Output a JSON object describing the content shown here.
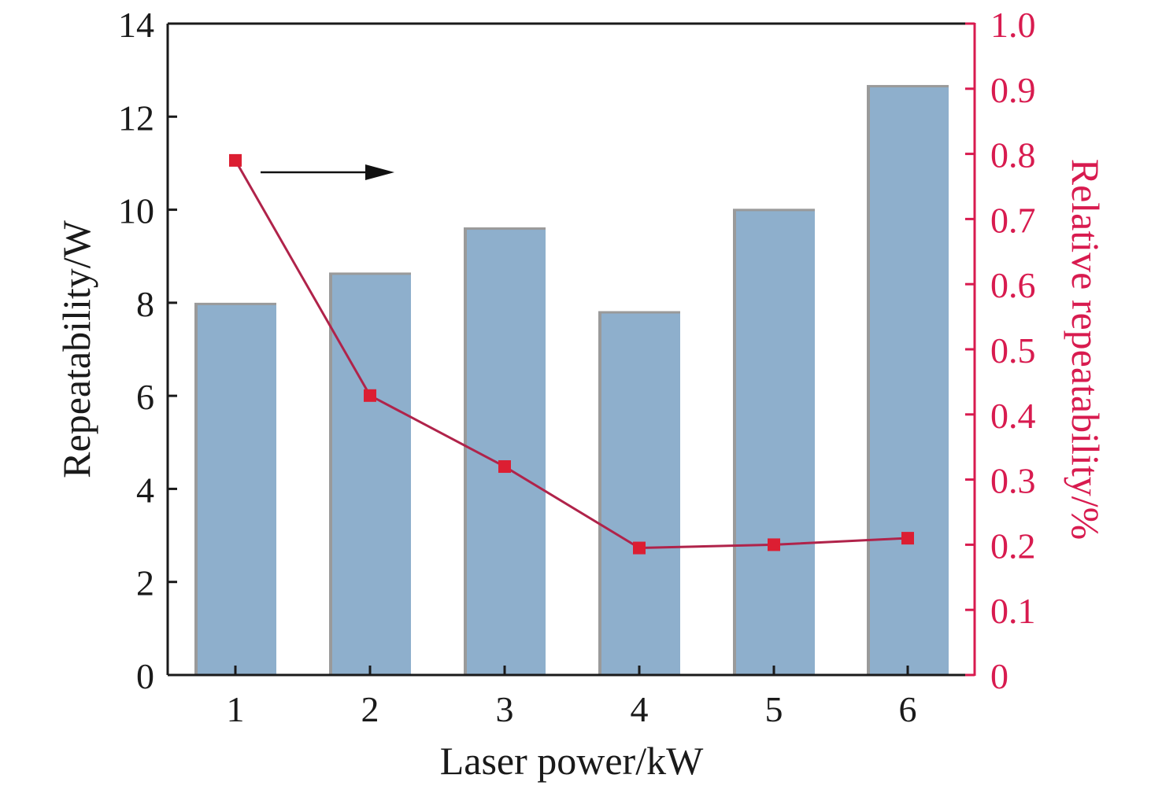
{
  "chart_data": {
    "type": "bar",
    "categories": [
      "1",
      "2",
      "3",
      "4",
      "5",
      "6"
    ],
    "xlabel": "Laser power/kW",
    "ylabel": "Repeatability/W",
    "ylabel_right": "Relative repeatability/%",
    "ylim": [
      0,
      14
    ],
    "ylim_right": [
      0,
      1.0
    ],
    "yticks": [
      "0",
      "2",
      "4",
      "6",
      "8",
      "10",
      "12",
      "14"
    ],
    "yticks_right": [
      "0",
      "0.1",
      "0.2",
      "0.3",
      "0.4",
      "0.5",
      "0.6",
      "0.7",
      "0.8",
      "0.9",
      "1.0"
    ],
    "series": [
      {
        "kind": "bar",
        "axis": "left",
        "values": [
          8.0,
          8.65,
          9.62,
          7.82,
          10.02,
          12.68
        ]
      },
      {
        "kind": "line",
        "axis": "right",
        "values": [
          0.79,
          0.429,
          0.32,
          0.195,
          0.2,
          0.21
        ]
      }
    ],
    "annotation": "arrow pointing right, indicating the line uses the right axis",
    "grid": false,
    "colors": {
      "bar_fill": "#8eafcc",
      "bar_shadow": "#9a9a9a",
      "line": "#b0234a",
      "marker": "#dc1e32",
      "right_axis": "#d81b4f",
      "left_axis": "#1a1a1a"
    }
  }
}
